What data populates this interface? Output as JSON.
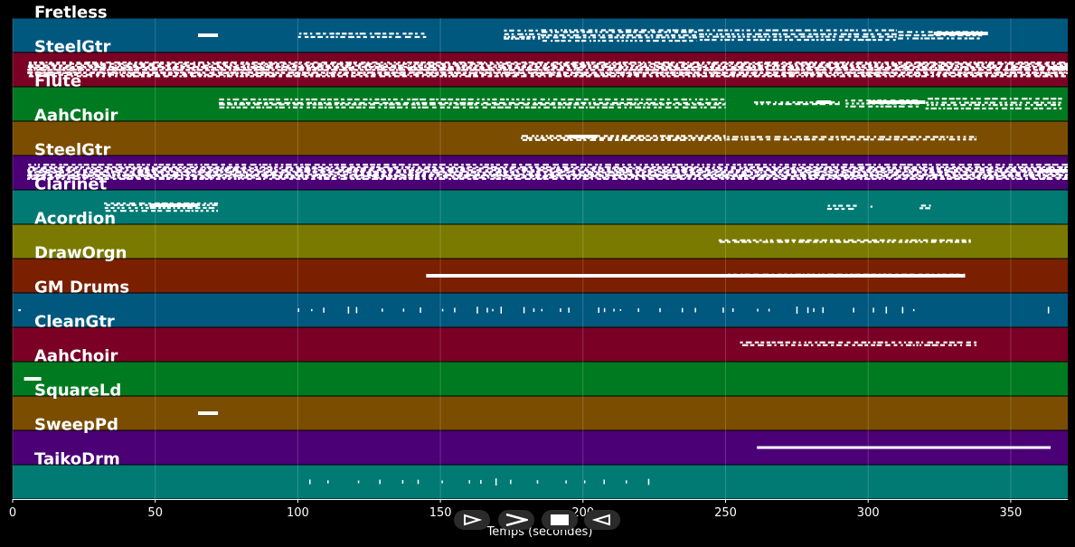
{
  "chart_data": {
    "type": "piano-roll",
    "xlabel": "Temps (secondes)",
    "xlim": [
      0,
      370
    ],
    "xticks": [
      "0",
      "50",
      "100",
      "150",
      "200",
      "250",
      "300",
      "350"
    ],
    "tracks": [
      {
        "name": "Fretless",
        "color": "#00587f",
        "notes": [
          [
            65,
            72,
            2,
            "s"
          ],
          [
            100,
            145,
            2,
            "d"
          ],
          [
            172,
            185,
            4,
            "d"
          ],
          [
            185,
            240,
            5,
            "d"
          ],
          [
            240,
            310,
            4,
            "d"
          ],
          [
            310,
            340,
            3,
            "d"
          ],
          [
            323,
            342,
            2,
            "b"
          ]
        ]
      },
      {
        "name": "SteelGtr",
        "color": "#7b0025",
        "notes": [
          [
            5,
            370,
            6,
            "d"
          ],
          [
            5,
            370,
            5,
            "d"
          ],
          [
            363,
            370,
            2,
            "b"
          ]
        ]
      },
      {
        "name": "Flute",
        "color": "#007a20",
        "notes": [
          [
            72,
            250,
            4,
            "d"
          ],
          [
            260,
            290,
            2,
            "d"
          ],
          [
            282,
            287,
            2,
            "b"
          ],
          [
            292,
            318,
            3,
            "d"
          ],
          [
            300,
            320,
            2,
            "b"
          ],
          [
            320,
            368,
            4,
            "d"
          ]
        ]
      },
      {
        "name": "AahChoir",
        "color": "#7a4d00",
        "notes": [
          [
            178,
            250,
            3,
            "d"
          ],
          [
            195,
            205,
            2,
            "b"
          ],
          [
            250,
            338,
            2,
            "d"
          ]
        ]
      },
      {
        "name": "SteelGtr",
        "color": "#4b0076",
        "notes": [
          [
            5,
            370,
            6,
            "d"
          ],
          [
            5,
            370,
            5,
            "d"
          ],
          [
            360,
            370,
            2,
            "b"
          ]
        ]
      },
      {
        "name": "Clarinet",
        "color": "#007a73",
        "notes": [
          [
            32,
            72,
            4,
            "d"
          ],
          [
            48,
            65,
            2,
            "b"
          ],
          [
            285,
            296,
            2,
            "d"
          ],
          [
            300,
            302,
            1,
            "d"
          ],
          [
            318,
            322,
            2,
            "d"
          ]
        ]
      },
      {
        "name": "Acordion",
        "color": "#7a7a00",
        "notes": [
          [
            247,
            336,
            2,
            "d"
          ]
        ]
      },
      {
        "name": "DrawOrgn",
        "color": "#7a1f00",
        "notes": [
          [
            145,
            250,
            3,
            "s"
          ],
          [
            250,
            334,
            2,
            "s"
          ],
          [
            250,
            334,
            1,
            "d"
          ]
        ]
      },
      {
        "name": "GM Drums",
        "color": "#00587f",
        "notes": [
          [
            2,
            4,
            1,
            "d"
          ],
          [
            100,
            320,
            4,
            "t"
          ],
          [
            363,
            364,
            1,
            "t"
          ]
        ]
      },
      {
        "name": "CleanGtr",
        "color": "#7b0025",
        "notes": [
          [
            255,
            338,
            2,
            "d"
          ]
        ]
      },
      {
        "name": "AahChoir",
        "color": "#007a20",
        "notes": [
          [
            4,
            10,
            1,
            "s"
          ]
        ]
      },
      {
        "name": "SquareLd",
        "color": "#7a4d00",
        "notes": [
          [
            65,
            72,
            1,
            "s"
          ]
        ]
      },
      {
        "name": "SweepPd",
        "color": "#4b0076",
        "notes": [
          [
            261,
            364,
            1,
            "l"
          ]
        ]
      },
      {
        "name": "TaikoDrm",
        "color": "#007a73",
        "notes": [
          [
            104,
            224,
            1,
            "t"
          ]
        ]
      }
    ]
  },
  "controls": {
    "play_icon": "play-icon",
    "forward_icon": "fast-forward-icon",
    "stop_icon": "stop-icon",
    "back_icon": "rewind-icon"
  }
}
